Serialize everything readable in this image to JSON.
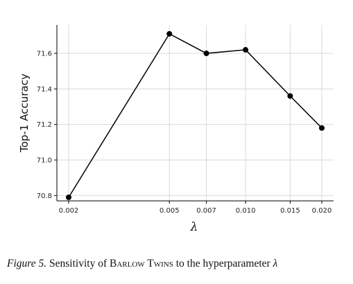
{
  "chart_data": {
    "type": "line",
    "xlabel": "λ",
    "ylabel": "Top-1 Accuracy",
    "x_ticks": [
      "0.002",
      "0.005",
      "0.007",
      "0.010",
      "0.015",
      "0.020"
    ],
    "x_scale": "log",
    "x": [
      0.002,
      0.005,
      0.007,
      0.01,
      0.015,
      0.02
    ],
    "y": [
      70.79,
      71.71,
      71.6,
      71.62,
      71.36,
      71.18
    ],
    "y_ticks": [
      "70.8",
      "71.0",
      "71.2",
      "71.4",
      "71.6"
    ],
    "ylim": [
      70.77,
      71.76
    ],
    "grid": true,
    "line_color": "#000000",
    "marker_color": "#000000"
  },
  "caption": {
    "label": "Figure 5.",
    "text_before": " Sensitivity of ",
    "name": "Barlow Twins",
    "text_after": " to the hyperparameter ",
    "symbol": "λ"
  }
}
